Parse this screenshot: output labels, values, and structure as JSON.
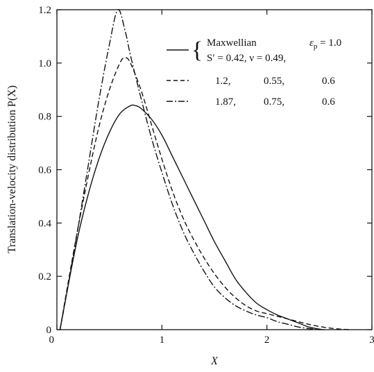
{
  "chart_data": {
    "type": "line",
    "xlabel": "X",
    "ylabel": "Translation-velocity distribution P(X)",
    "xlim": [
      0,
      3
    ],
    "ylim": [
      0,
      1.2
    ],
    "x_ticks": [
      {
        "value": 0,
        "label": "0"
      },
      {
        "value": 1,
        "label": "1"
      },
      {
        "value": 2,
        "label": "2"
      },
      {
        "value": 3,
        "label": "3"
      }
    ],
    "y_ticks": [
      {
        "value": 0,
        "label": "0"
      },
      {
        "value": 0.2,
        "label": "0.2"
      },
      {
        "value": 0.4,
        "label": "0.4"
      },
      {
        "value": 0.6,
        "label": "0.6"
      },
      {
        "value": 0.8,
        "label": "0.8"
      },
      {
        "value": 1.0,
        "label": "1.0"
      },
      {
        "value": 1.2,
        "label": "1.2"
      }
    ],
    "grid": false,
    "legend": {
      "placement": "top-right",
      "rows": [
        [
          "Maxwellian",
          "ε",
          "p",
          " = 1.0"
        ],
        [
          "S′ = 0.42, ν = 0.49,"
        ],
        [
          "1.2,",
          "0.55,",
          "0.6"
        ],
        [
          "1.87,",
          "0.75,",
          "0.6"
        ]
      ]
    },
    "series": [
      {
        "line_style": "solid",
        "x": [
          0.03,
          0.1,
          0.2,
          0.3,
          0.4,
          0.5,
          0.6,
          0.7,
          0.75,
          0.8,
          0.9,
          1.0,
          1.1,
          1.2,
          1.3,
          1.4,
          1.5,
          1.6,
          1.7,
          1.8,
          1.9,
          2.0,
          2.1,
          2.2,
          2.3,
          2.4,
          2.5,
          2.55
        ],
        "y": [
          0.0,
          0.15,
          0.35,
          0.51,
          0.64,
          0.74,
          0.81,
          0.84,
          0.84,
          0.83,
          0.79,
          0.73,
          0.65,
          0.57,
          0.49,
          0.41,
          0.33,
          0.26,
          0.19,
          0.14,
          0.1,
          0.075,
          0.055,
          0.04,
          0.025,
          0.01,
          0.002,
          0.0
        ]
      },
      {
        "line_style": "dashed",
        "x": [
          0.03,
          0.1,
          0.2,
          0.3,
          0.4,
          0.5,
          0.6,
          0.65,
          0.7,
          0.8,
          0.9,
          1.0,
          1.1,
          1.2,
          1.3,
          1.4,
          1.5,
          1.6,
          1.7,
          1.8,
          1.9,
          2.0,
          2.1,
          2.2,
          2.3,
          2.4,
          2.5,
          2.6,
          2.7,
          2.8
        ],
        "y": [
          0.0,
          0.16,
          0.38,
          0.58,
          0.76,
          0.9,
          1.0,
          1.02,
          1.0,
          0.9,
          0.77,
          0.64,
          0.52,
          0.42,
          0.34,
          0.27,
          0.21,
          0.16,
          0.12,
          0.09,
          0.07,
          0.06,
          0.05,
          0.04,
          0.03,
          0.02,
          0.012,
          0.006,
          0.002,
          0.0
        ]
      },
      {
        "line_style": "dash-dot",
        "x": [
          0.03,
          0.1,
          0.2,
          0.3,
          0.4,
          0.5,
          0.58,
          0.65,
          0.7,
          0.8,
          0.9,
          1.0,
          1.1,
          1.2,
          1.3,
          1.4,
          1.5,
          1.6,
          1.7,
          1.8,
          1.9,
          2.0,
          2.1,
          2.2,
          2.3,
          2.4,
          2.5
        ],
        "y": [
          0.0,
          0.15,
          0.38,
          0.62,
          0.86,
          1.07,
          1.2,
          1.12,
          1.03,
          0.87,
          0.72,
          0.59,
          0.47,
          0.37,
          0.29,
          0.22,
          0.16,
          0.12,
          0.09,
          0.07,
          0.055,
          0.045,
          0.03,
          0.02,
          0.01,
          0.004,
          0.0
        ]
      }
    ]
  }
}
